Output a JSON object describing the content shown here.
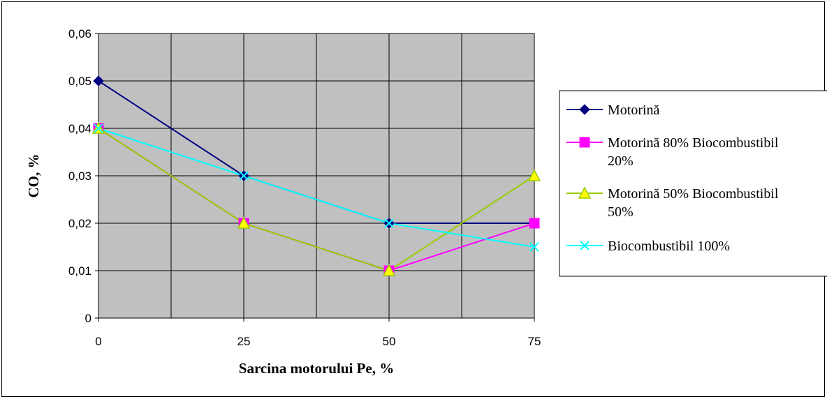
{
  "chart_data": {
    "type": "line",
    "title": "",
    "xlabel": "Sarcina motorului Pe, %",
    "ylabel": "CO, %",
    "x": [
      0,
      25,
      50,
      75
    ],
    "x_tick_labels": [
      "0",
      "25",
      "50",
      "75"
    ],
    "y_tick_labels": [
      "0",
      "0,01",
      "0,02",
      "0,03",
      "0,04",
      "0,05",
      "0,06"
    ],
    "ylim": [
      0,
      0.06
    ],
    "xlim": [
      0,
      75
    ],
    "grid": true,
    "plot_background": "#c0c0c0",
    "legend_position": "right",
    "series": [
      {
        "name": "Motorină",
        "legend_lines": [
          "Motorină"
        ],
        "values": [
          0.05,
          0.03,
          0.02,
          0.02
        ],
        "color": "#000080",
        "marker": "diamond"
      },
      {
        "name": "Motorină 80% Biocombustibil 20%",
        "legend_lines": [
          "Motorină 80% Biocombustibil",
          "20%"
        ],
        "values": [
          0.04,
          0.02,
          0.01,
          0.02
        ],
        "color": "#ff00ff",
        "marker": "square"
      },
      {
        "name": "Motorină 50% Biocombustibil 50%",
        "legend_lines": [
          "Motorină 50% Biocombustibil",
          "50%"
        ],
        "values": [
          0.04,
          0.02,
          0.01,
          0.03
        ],
        "color": "#99cc00",
        "marker": "triangle"
      },
      {
        "name": "Biocombustibil 100%",
        "legend_lines": [
          "Biocombustibil 100%"
        ],
        "values": [
          0.04,
          0.03,
          0.02,
          0.015
        ],
        "color": "#00ffff",
        "marker": "x"
      }
    ]
  }
}
